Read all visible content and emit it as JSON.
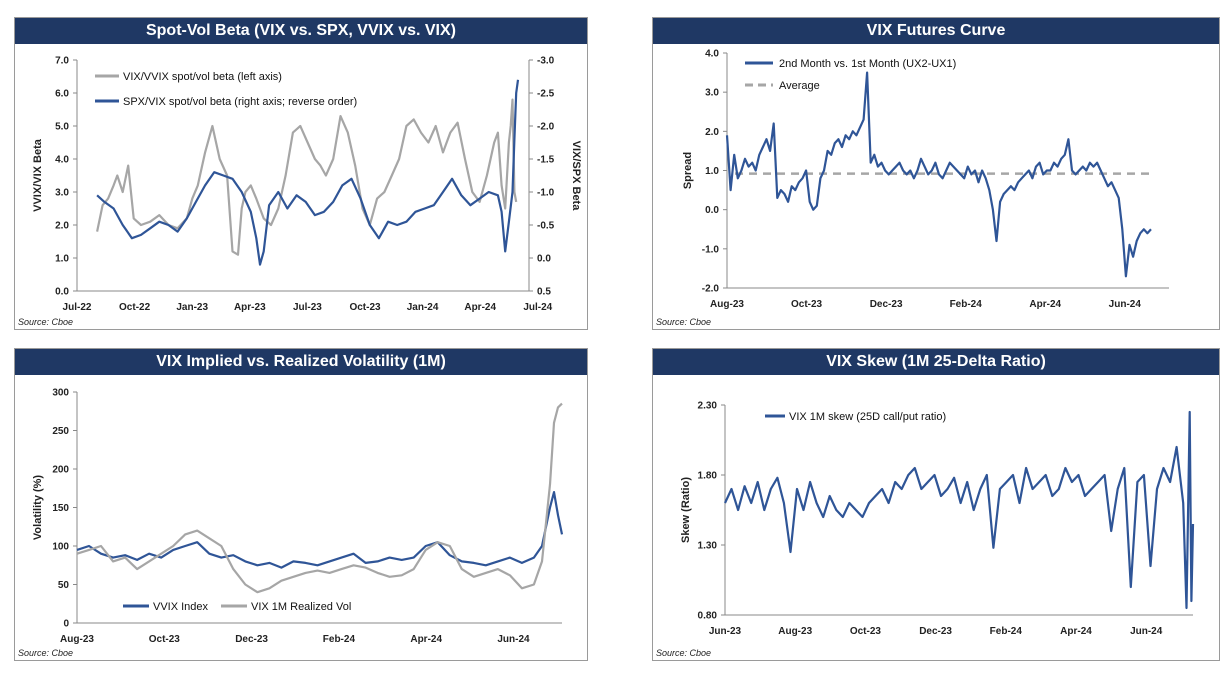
{
  "source_label": "Source: Cboe",
  "colors": {
    "title_bg": "#1f3864",
    "blue": "#2f5597",
    "gray": "#a6a6a6"
  },
  "chart_data": [
    {
      "id": "spot_vol_beta",
      "type": "line",
      "title": "Spot-Vol Beta (VIX vs. SPX, VVIX vs. VIX)",
      "ylabel": "VVIX/VIX Beta",
      "y2label": "VIX/SPX Beta",
      "ylim": [
        0,
        7
      ],
      "y2lim": [
        0.5,
        -3.0
      ],
      "y2_reversed": true,
      "yticks": [
        "0.0",
        "1.0",
        "2.0",
        "3.0",
        "4.0",
        "5.0",
        "6.0",
        "7.0"
      ],
      "y2ticks": [
        "0.5",
        "0.0",
        "-0.5",
        "-1.0",
        "-1.5",
        "-2.0",
        "-2.5",
        "-3.0"
      ],
      "xticks": [
        "Jul-22",
        "Oct-22",
        "Jan-23",
        "Apr-23",
        "Jul-23",
        "Oct-23",
        "Jan-24",
        "Apr-24",
        "Jul-24"
      ],
      "xrange": [
        0,
        24.7
      ],
      "legend_position": "top-left",
      "series": [
        {
          "name": "VIX/VVIX spot/vol beta (left axis)",
          "axis": "left",
          "color": "#a6a6a6",
          "x": [
            1.1,
            1.4,
            1.7,
            2.0,
            2.2,
            2.5,
            2.8,
            3.1,
            3.5,
            4.0,
            4.5,
            5.0,
            5.5,
            6.0,
            6.3,
            6.6,
            7.0,
            7.4,
            7.8,
            8.2,
            8.5,
            8.8,
            9.0,
            9.2,
            9.5,
            9.8,
            10.2,
            10.6,
            11.0,
            11.4,
            11.8,
            12.2,
            12.6,
            13.0,
            13.3,
            13.6,
            14.0,
            14.4,
            14.8,
            15.2,
            15.6,
            16.0,
            16.4,
            16.8,
            17.2,
            17.6,
            18.0,
            18.4,
            18.8,
            19.2,
            19.6,
            20.0,
            20.4,
            20.8,
            21.2,
            21.6,
            22.0,
            22.4,
            22.8,
            23.0,
            23.2,
            23.4,
            23.6,
            23.7,
            23.8,
            23.9,
            24.0
          ],
          "values": [
            1.8,
            2.6,
            2.8,
            3.2,
            3.5,
            3.0,
            3.8,
            2.2,
            2.0,
            2.1,
            2.3,
            2.0,
            1.9,
            2.2,
            2.8,
            3.2,
            4.2,
            5.0,
            4.0,
            3.5,
            1.2,
            1.1,
            2.5,
            3.0,
            3.2,
            2.8,
            2.2,
            2.0,
            2.5,
            3.5,
            4.8,
            5.0,
            4.5,
            4.0,
            3.8,
            3.5,
            4.0,
            5.3,
            4.8,
            3.8,
            2.5,
            2.0,
            2.8,
            3.0,
            3.5,
            4.0,
            5.0,
            5.2,
            4.8,
            4.5,
            5.0,
            4.2,
            4.8,
            5.1,
            4.0,
            3.0,
            2.7,
            3.5,
            4.5,
            4.8,
            3.2,
            2.5,
            4.5,
            5.0,
            5.8,
            3.0,
            2.7
          ]
        },
        {
          "name": "SPX/VIX spot/vol beta (right axis; reverse order)",
          "axis": "right",
          "color": "#2f5597",
          "x": [
            1.1,
            1.5,
            2.0,
            2.5,
            3.0,
            3.5,
            4.0,
            4.5,
            5.0,
            5.5,
            6.0,
            6.5,
            7.0,
            7.5,
            8.0,
            8.5,
            9.0,
            9.5,
            9.8,
            10.0,
            10.2,
            10.5,
            11.0,
            11.5,
            12.0,
            12.5,
            13.0,
            13.5,
            14.0,
            14.5,
            15.0,
            15.5,
            16.0,
            16.5,
            17.0,
            17.5,
            18.0,
            18.5,
            19.0,
            19.5,
            20.0,
            20.5,
            21.0,
            21.5,
            22.0,
            22.5,
            23.0,
            23.2,
            23.4,
            23.6,
            23.8,
            23.9,
            24.0,
            24.1
          ],
          "values": [
            -0.95,
            -0.85,
            -0.75,
            -0.5,
            -0.3,
            -0.35,
            -0.45,
            -0.55,
            -0.5,
            -0.4,
            -0.6,
            -0.85,
            -1.1,
            -1.3,
            -1.25,
            -1.2,
            -1.0,
            -0.7,
            -0.3,
            0.1,
            -0.1,
            -0.8,
            -1.0,
            -0.75,
            -0.95,
            -0.85,
            -0.65,
            -0.7,
            -0.85,
            -1.1,
            -1.2,
            -0.9,
            -0.5,
            -0.3,
            -0.55,
            -0.5,
            -0.55,
            -0.7,
            -0.75,
            -0.8,
            -1.0,
            -1.2,
            -0.95,
            -0.8,
            -0.9,
            -1.0,
            -0.95,
            -0.7,
            -0.1,
            -0.55,
            -1.0,
            -1.8,
            -2.5,
            -2.7
          ]
        }
      ]
    },
    {
      "id": "vix_futures_curve",
      "type": "line",
      "title": "VIX Futures Curve",
      "ylabel": "Spread",
      "ylim": [
        -2.0,
        4.0
      ],
      "yticks": [
        "-2.0",
        "-1.0",
        "0.0",
        "1.0",
        "2.0",
        "3.0",
        "4.0"
      ],
      "xticks": [
        "Aug-23",
        "Oct-23",
        "Dec-23",
        "Feb-24",
        "Apr-24",
        "Jun-24"
      ],
      "xrange": [
        0,
        12.3
      ],
      "legend_position": "top-left",
      "average_label": "Average",
      "average_value": 0.92,
      "series": [
        {
          "name": "2nd Month vs. 1st Month (UX2-UX1)",
          "color": "#2f5597",
          "x": [
            0,
            0.1,
            0.2,
            0.3,
            0.4,
            0.5,
            0.6,
            0.7,
            0.8,
            0.9,
            1.0,
            1.1,
            1.2,
            1.3,
            1.4,
            1.5,
            1.6,
            1.7,
            1.8,
            1.9,
            2.0,
            2.1,
            2.2,
            2.3,
            2.4,
            2.5,
            2.6,
            2.7,
            2.8,
            2.9,
            3.0,
            3.1,
            3.2,
            3.3,
            3.4,
            3.5,
            3.6,
            3.7,
            3.8,
            3.9,
            4.0,
            4.1,
            4.2,
            4.3,
            4.4,
            4.5,
            4.6,
            4.7,
            4.8,
            4.9,
            5.0,
            5.1,
            5.2,
            5.3,
            5.4,
            5.5,
            5.6,
            5.7,
            5.8,
            5.9,
            6.0,
            6.1,
            6.2,
            6.3,
            6.4,
            6.5,
            6.6,
            6.7,
            6.8,
            6.9,
            7.0,
            7.1,
            7.2,
            7.3,
            7.4,
            7.5,
            7.6,
            7.7,
            7.8,
            7.9,
            8.0,
            8.1,
            8.2,
            8.3,
            8.4,
            8.5,
            8.6,
            8.7,
            8.8,
            8.9,
            9.0,
            9.1,
            9.2,
            9.3,
            9.4,
            9.5,
            9.6,
            9.7,
            9.8,
            9.9,
            10.0,
            10.1,
            10.2,
            10.3,
            10.4,
            10.5,
            10.6,
            10.7,
            10.8,
            10.9,
            11.0,
            11.1,
            11.2,
            11.3,
            11.4,
            11.5,
            11.6,
            11.7,
            11.8
          ],
          "values": [
            1.9,
            0.5,
            1.4,
            0.8,
            1.0,
            1.3,
            1.1,
            1.2,
            1.0,
            1.4,
            1.6,
            1.8,
            1.5,
            2.2,
            0.3,
            0.5,
            0.4,
            0.2,
            0.6,
            0.5,
            0.7,
            0.8,
            1.0,
            0.2,
            0.0,
            0.1,
            0.8,
            1.0,
            1.5,
            1.4,
            1.7,
            1.8,
            1.6,
            1.9,
            1.8,
            2.0,
            1.9,
            2.1,
            2.3,
            3.5,
            1.2,
            1.4,
            1.1,
            1.2,
            1.0,
            0.9,
            1.0,
            1.1,
            1.2,
            1.0,
            0.9,
            1.0,
            0.8,
            1.0,
            1.3,
            1.1,
            0.9,
            1.0,
            1.2,
            0.9,
            0.8,
            1.0,
            1.2,
            1.1,
            1.0,
            0.9,
            0.8,
            1.1,
            0.9,
            1.0,
            0.7,
            1.0,
            0.8,
            0.5,
            0.0,
            -0.8,
            0.2,
            0.4,
            0.5,
            0.6,
            0.5,
            0.7,
            0.8,
            0.9,
            1.0,
            0.8,
            1.1,
            1.2,
            0.9,
            1.0,
            1.0,
            1.2,
            1.1,
            1.3,
            1.4,
            1.8,
            1.0,
            0.9,
            1.0,
            1.1,
            1.0,
            1.2,
            1.1,
            1.2,
            1.0,
            0.8,
            0.6,
            0.7,
            0.5,
            0.3,
            -0.5,
            -1.7,
            -0.9,
            -1.2,
            -0.8,
            -0.6,
            -0.5,
            -0.6,
            -0.5
          ]
        }
      ]
    },
    {
      "id": "vix_implied_realized",
      "type": "line",
      "title": "VIX Implied vs. Realized Volatility (1M)",
      "ylabel": "Volatility (%)",
      "ylim": [
        0,
        300
      ],
      "yticks": [
        "0",
        "50",
        "100",
        "150",
        "200",
        "250",
        "300"
      ],
      "xticks": [
        "Aug-23",
        "Oct-23",
        "Dec-23",
        "Feb-24",
        "Apr-24",
        "Jun-24"
      ],
      "xrange": [
        0,
        12.1
      ],
      "legend_position": "bottom-left",
      "series": [
        {
          "name": "VVIX Index",
          "color": "#2f5597",
          "x": [
            0,
            0.3,
            0.6,
            0.9,
            1.2,
            1.5,
            1.8,
            2.1,
            2.4,
            2.7,
            3.0,
            3.3,
            3.6,
            3.9,
            4.2,
            4.5,
            4.8,
            5.1,
            5.4,
            5.7,
            6.0,
            6.3,
            6.6,
            6.9,
            7.2,
            7.5,
            7.8,
            8.1,
            8.4,
            8.7,
            9.0,
            9.3,
            9.6,
            9.9,
            10.2,
            10.5,
            10.8,
            11.1,
            11.4,
            11.6,
            11.8,
            11.9,
            12.0,
            12.1
          ],
          "values": [
            95,
            100,
            90,
            85,
            88,
            82,
            90,
            85,
            95,
            100,
            105,
            90,
            85,
            88,
            80,
            75,
            78,
            72,
            80,
            78,
            75,
            80,
            85,
            90,
            78,
            80,
            85,
            82,
            85,
            100,
            105,
            88,
            80,
            78,
            75,
            80,
            85,
            78,
            85,
            100,
            150,
            170,
            140,
            115
          ]
        },
        {
          "name": "VIX 1M Realized Vol",
          "color": "#a6a6a6",
          "x": [
            0,
            0.3,
            0.6,
            0.9,
            1.2,
            1.5,
            1.8,
            2.1,
            2.4,
            2.7,
            3.0,
            3.3,
            3.6,
            3.9,
            4.2,
            4.5,
            4.8,
            5.1,
            5.4,
            5.7,
            6.0,
            6.3,
            6.6,
            6.9,
            7.2,
            7.5,
            7.8,
            8.1,
            8.4,
            8.7,
            9.0,
            9.3,
            9.6,
            9.9,
            10.2,
            10.5,
            10.8,
            11.1,
            11.4,
            11.6,
            11.8,
            11.9,
            12.0,
            12.1
          ],
          "values": [
            90,
            95,
            100,
            80,
            85,
            70,
            80,
            90,
            100,
            115,
            120,
            110,
            100,
            70,
            50,
            40,
            45,
            55,
            60,
            65,
            68,
            65,
            70,
            75,
            72,
            65,
            60,
            62,
            70,
            95,
            105,
            100,
            70,
            60,
            65,
            70,
            62,
            45,
            50,
            80,
            180,
            260,
            280,
            285
          ]
        }
      ]
    },
    {
      "id": "vix_skew",
      "type": "line",
      "title": "VIX Skew (1M 25-Delta Ratio)",
      "ylabel": "Skew (Ratio)",
      "ylim": [
        0.8,
        2.3
      ],
      "yticks": [
        "0.80",
        "1.30",
        "1.80",
        "2.30"
      ],
      "xticks": [
        "Jun-23",
        "Aug-23",
        "Oct-23",
        "Dec-23",
        "Feb-24",
        "Apr-24",
        "Jun-24"
      ],
      "xrange": [
        0,
        14.3
      ],
      "legend_position": "top-left",
      "series": [
        {
          "name": "VIX 1M skew (25D call/put ratio)",
          "color": "#2f5597",
          "x": [
            0,
            0.2,
            0.4,
            0.6,
            0.8,
            1.0,
            1.2,
            1.4,
            1.6,
            1.8,
            2.0,
            2.2,
            2.4,
            2.6,
            2.8,
            3.0,
            3.2,
            3.4,
            3.6,
            3.8,
            4.0,
            4.2,
            4.4,
            4.6,
            4.8,
            5.0,
            5.2,
            5.4,
            5.6,
            5.8,
            6.0,
            6.2,
            6.4,
            6.6,
            6.8,
            7.0,
            7.2,
            7.4,
            7.6,
            7.8,
            8.0,
            8.2,
            8.4,
            8.6,
            8.8,
            9.0,
            9.2,
            9.4,
            9.6,
            9.8,
            10.0,
            10.2,
            10.4,
            10.6,
            10.8,
            11.0,
            11.2,
            11.4,
            11.6,
            11.8,
            12.0,
            12.2,
            12.4,
            12.6,
            12.8,
            13.0,
            13.2,
            13.4,
            13.6,
            13.8,
            14.0,
            14.1,
            14.2,
            14.25,
            14.3
          ],
          "values": [
            1.6,
            1.7,
            1.55,
            1.72,
            1.6,
            1.75,
            1.55,
            1.7,
            1.78,
            1.6,
            1.25,
            1.7,
            1.55,
            1.75,
            1.6,
            1.5,
            1.65,
            1.55,
            1.5,
            1.6,
            1.55,
            1.5,
            1.6,
            1.65,
            1.7,
            1.6,
            1.75,
            1.7,
            1.8,
            1.85,
            1.7,
            1.75,
            1.8,
            1.65,
            1.7,
            1.78,
            1.6,
            1.75,
            1.55,
            1.7,
            1.8,
            1.28,
            1.7,
            1.75,
            1.8,
            1.6,
            1.85,
            1.7,
            1.75,
            1.8,
            1.65,
            1.7,
            1.85,
            1.75,
            1.8,
            1.65,
            1.7,
            1.75,
            1.8,
            1.4,
            1.7,
            1.85,
            1.0,
            1.75,
            1.8,
            1.15,
            1.7,
            1.85,
            1.75,
            2.0,
            1.6,
            0.85,
            2.25,
            0.9,
            1.45
          ]
        }
      ]
    }
  ]
}
